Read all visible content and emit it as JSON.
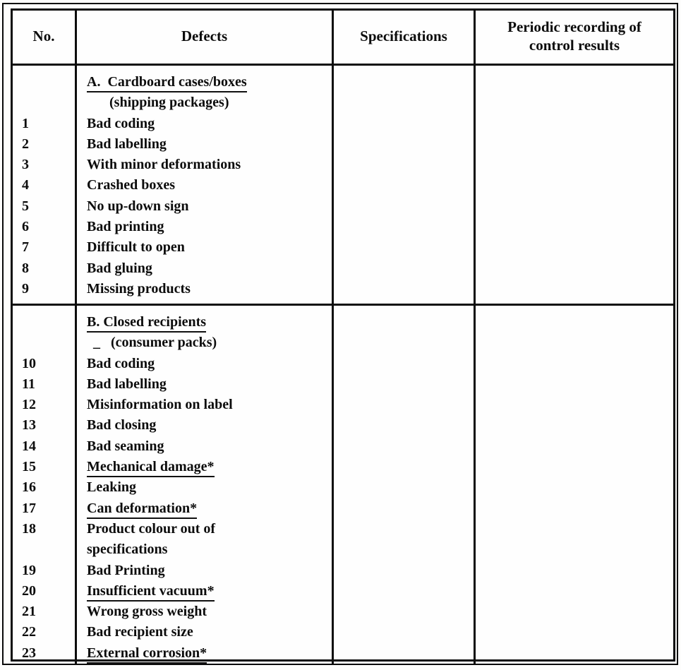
{
  "table": {
    "columns": [
      "No.",
      "Defects",
      "Specifications",
      "Periodic recording of control results"
    ],
    "sections": [
      {
        "heading": "A.  Cardboard cases/boxes",
        "heading_underlined": true,
        "subheading": "(shipping packages)",
        "lines": [
          {
            "no": "1",
            "defect": "Bad coding"
          },
          {
            "no": "2",
            "defect": "Bad labelling"
          },
          {
            "no": "3",
            "defect": "With minor deformations"
          },
          {
            "no": "4",
            "defect": "Crashed boxes"
          },
          {
            "no": "5",
            "defect": "No up-down sign"
          },
          {
            "no": "6",
            "defect": "Bad printing"
          },
          {
            "no": "7",
            "defect": "Difficult to open"
          },
          {
            "no": "8",
            "defect": "Bad gluing"
          },
          {
            "no": "9",
            "defect": "Missing products"
          }
        ]
      },
      {
        "heading": "B. Closed recipients",
        "heading_underlined": true,
        "subheading": "_   (consumer packs)",
        "lines": [
          {
            "no": "10",
            "defect": "Bad coding"
          },
          {
            "no": "11",
            "defect": "Bad labelling"
          },
          {
            "no": "12",
            "defect": "Misinformation on label"
          },
          {
            "no": "13",
            "defect": "Bad closing"
          },
          {
            "no": "14",
            "defect": "Bad seaming"
          },
          {
            "no": "15",
            "defect": "Mechanical damage*",
            "underlined": true
          },
          {
            "no": "16",
            "defect": "Leaking"
          },
          {
            "no": "17",
            "defect": "Can deformation*",
            "underlined": true
          },
          {
            "no": "18",
            "defect": "Product colour out of"
          },
          {
            "no": "",
            "defect": "specifications"
          },
          {
            "no": "19",
            "defect": "Bad Printing"
          },
          {
            "no": "20",
            "defect": "Insufficient vacuum*",
            "underlined": true
          },
          {
            "no": "21",
            "defect": "Wrong gross weight"
          },
          {
            "no": "22",
            "defect": "Bad recipient size"
          },
          {
            "no": "23",
            "defect": "External corrosion*",
            "underlined": true
          }
        ]
      }
    ]
  }
}
